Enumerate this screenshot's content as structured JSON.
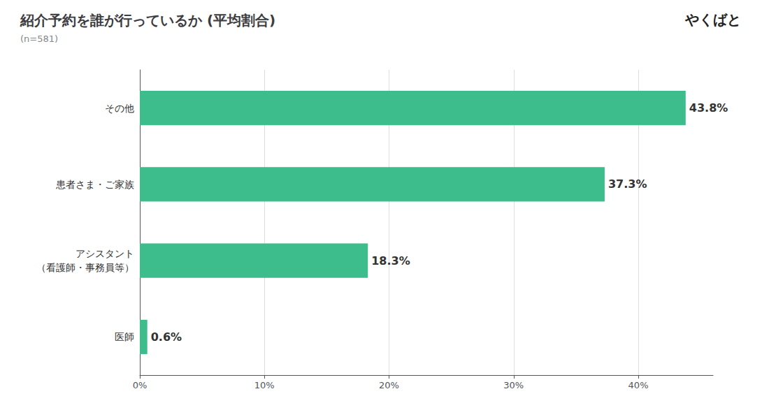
{
  "chart_data": {
    "type": "bar",
    "orientation": "horizontal",
    "title": "紹介予約を誰が行っているか (平均割合)",
    "subtitle": "(n=581)",
    "annotations": [
      "やくばと"
    ],
    "categories": [
      "その他",
      "患者さま・ご家族",
      "アシスタント\n（看護師・事務員等）",
      "医師"
    ],
    "values": [
      43.8,
      37.3,
      18.3,
      0.6
    ],
    "value_labels": [
      "43.8%",
      "37.3%",
      "18.3%",
      "0.6%"
    ],
    "data_labels": true,
    "color": "#3EBD8C",
    "xlim": [
      0,
      46
    ],
    "xticks": [
      {
        "value": 0,
        "label": "0%"
      },
      {
        "value": 10,
        "label": "10%"
      },
      {
        "value": 20,
        "label": "20%"
      },
      {
        "value": 30,
        "label": "30%"
      },
      {
        "value": 40,
        "label": "40%"
      }
    ],
    "grid": true
  }
}
